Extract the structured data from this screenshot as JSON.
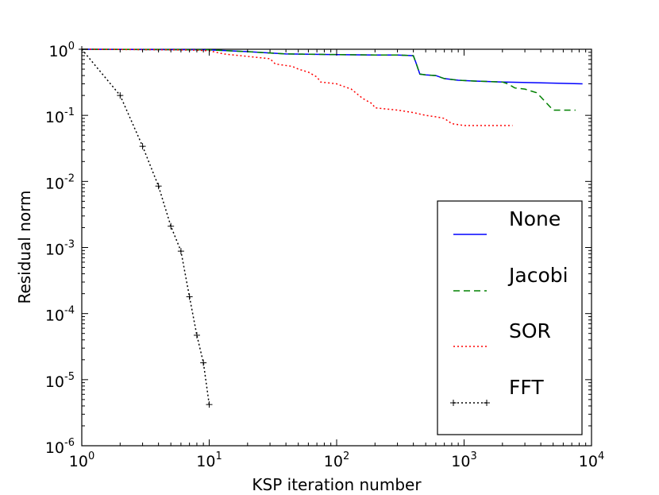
{
  "chart_data": {
    "type": "line",
    "title": "",
    "xlabel": "KSP iteration number",
    "ylabel": "Residual norm",
    "xscale": "log",
    "yscale": "log",
    "xlim": [
      1,
      10000
    ],
    "ylim": [
      1e-06,
      1
    ],
    "x_ticks": [
      {
        "base": "10",
        "exp": "0"
      },
      {
        "base": "10",
        "exp": "1"
      },
      {
        "base": "10",
        "exp": "2"
      },
      {
        "base": "10",
        "exp": "3"
      },
      {
        "base": "10",
        "exp": "4"
      }
    ],
    "y_ticks": [
      {
        "base": "10",
        "exp": "0"
      },
      {
        "base": "10",
        "exp": "-1"
      },
      {
        "base": "10",
        "exp": "-2"
      },
      {
        "base": "10",
        "exp": "-3"
      },
      {
        "base": "10",
        "exp": "-4"
      },
      {
        "base": "10",
        "exp": "-5"
      },
      {
        "base": "10",
        "exp": "-6"
      }
    ],
    "legend_position": "right",
    "series": [
      {
        "name": "None",
        "color": "#0000ff",
        "style": "solid",
        "marker": "none",
        "x": [
          1,
          10,
          20,
          40,
          100,
          200,
          300,
          400,
          420,
          450,
          500,
          600,
          700,
          900,
          1200,
          2000,
          4000,
          8500
        ],
        "y": [
          1.0,
          0.98,
          0.92,
          0.85,
          0.83,
          0.82,
          0.82,
          0.8,
          0.62,
          0.42,
          0.41,
          0.4,
          0.36,
          0.34,
          0.33,
          0.32,
          0.31,
          0.3
        ]
      },
      {
        "name": "Jacobi",
        "color": "#008000",
        "style": "dashed",
        "marker": "none",
        "x": [
          1,
          10,
          20,
          40,
          100,
          200,
          300,
          400,
          420,
          450,
          500,
          600,
          700,
          900,
          1200,
          2000,
          2200,
          2500,
          3000,
          3700,
          4000,
          5000,
          7500
        ],
        "y": [
          1.0,
          0.98,
          0.92,
          0.85,
          0.83,
          0.82,
          0.82,
          0.8,
          0.62,
          0.42,
          0.41,
          0.4,
          0.36,
          0.34,
          0.33,
          0.32,
          0.3,
          0.26,
          0.25,
          0.22,
          0.19,
          0.12,
          0.12
        ]
      },
      {
        "name": "SOR",
        "color": "#ff0000",
        "style": "dotted",
        "marker": "none",
        "x": [
          1,
          5,
          8,
          10,
          13,
          20,
          30,
          33,
          45,
          50,
          60,
          70,
          75,
          100,
          110,
          130,
          160,
          190,
          200,
          300,
          400,
          500,
          600,
          700,
          800,
          1000,
          2400
        ],
        "y": [
          1.0,
          0.98,
          0.97,
          0.95,
          0.85,
          0.78,
          0.72,
          0.6,
          0.55,
          0.5,
          0.45,
          0.38,
          0.32,
          0.3,
          0.28,
          0.25,
          0.18,
          0.15,
          0.13,
          0.12,
          0.11,
          0.1,
          0.095,
          0.09,
          0.075,
          0.07,
          0.07
        ]
      },
      {
        "name": "FFT",
        "color": "#000000",
        "style": "dotted",
        "marker": "+",
        "x": [
          1,
          2,
          3,
          4,
          5,
          6,
          7,
          8,
          9,
          10
        ],
        "y": [
          1.0,
          0.2,
          0.034,
          0.0085,
          0.0021,
          0.00088,
          0.00018,
          4.7e-05,
          1.8e-05,
          4.2e-06
        ]
      }
    ]
  }
}
